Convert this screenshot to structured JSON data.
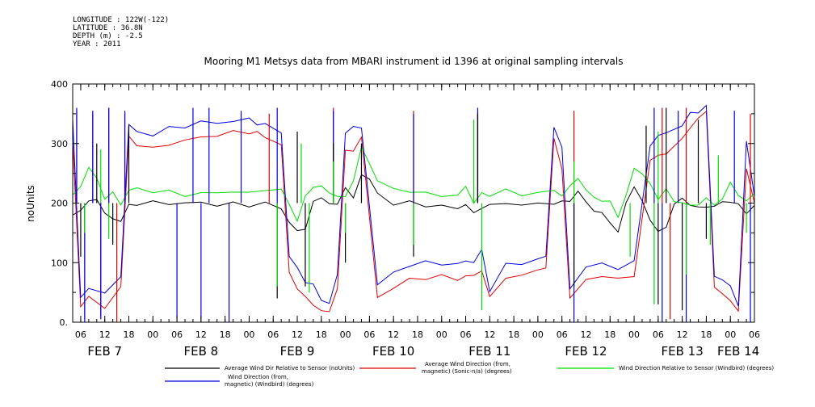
{
  "meta": {
    "longitude": "LONGITUDE : 122W(-122)",
    "latitude": "LATITUDE : 36.8N",
    "depth": "DEPTH (m) : -2.5",
    "year": "YEAR : 2011"
  },
  "chart_data": {
    "type": "line",
    "title": "Mooring M1 Metsys data from MBARI instrument id 1396 at original sampling intervals",
    "ylabel": "noUnits",
    "xlabel": "",
    "ylim": [
      0,
      400
    ],
    "yticks": [
      0,
      100,
      200,
      300,
      400
    ],
    "ytick_labels": [
      "0.",
      "100",
      "200",
      "300",
      "400"
    ],
    "xlim_hours": [
      4,
      174
    ],
    "hour_tick_labels": [
      "06",
      "12",
      "18",
      "00",
      "06",
      "12",
      "18",
      "00",
      "06",
      "12",
      "18",
      "00",
      "06",
      "12",
      "18",
      "00",
      "06",
      "12",
      "18",
      "00",
      "06",
      "12",
      "18",
      "00",
      "06",
      "12",
      "18",
      "00",
      "06"
    ],
    "day_labels": [
      {
        "label": "FEB  7",
        "hour": 12
      },
      {
        "label": "FEB  8",
        "hour": 36
      },
      {
        "label": "FEB  9",
        "hour": 60
      },
      {
        "label": "FEB 10",
        "hour": 84
      },
      {
        "label": "FEB 11",
        "hour": 108
      },
      {
        "label": "FEB 12",
        "hour": 132
      },
      {
        "label": "FEB 13",
        "hour": 156
      },
      {
        "label": "FEB 14",
        "hour": 170
      }
    ],
    "grid": false,
    "legend_position": "bottom",
    "series": [
      {
        "name": "Average Wind Dir Relative to Sensor (noUnits)",
        "color": "#000000",
        "x": [
          4,
          6,
          8,
          10,
          12,
          14,
          16,
          18,
          20,
          24,
          28,
          32,
          36,
          40,
          44,
          48,
          52,
          56,
          58,
          60,
          62,
          64,
          66,
          68,
          70,
          72,
          74,
          76,
          78,
          80,
          84,
          88,
          92,
          96,
          100,
          102,
          104,
          106,
          108,
          112,
          116,
          120,
          124,
          126,
          128,
          130,
          132,
          134,
          136,
          138,
          140,
          142,
          144,
          146,
          148,
          150,
          152,
          154,
          156,
          158,
          160,
          162,
          164,
          166,
          168,
          170,
          172,
          174
        ],
        "y": [
          180,
          190,
          200,
          210,
          180,
          175,
          170,
          195,
          200,
          200,
          200,
          200,
          200,
          198,
          198,
          197,
          200,
          190,
          170,
          150,
          160,
          200,
          210,
          200,
          195,
          230,
          205,
          250,
          240,
          215,
          200,
          200,
          197,
          195,
          190,
          200,
          180,
          195,
          195,
          200,
          198,
          197,
          202,
          200,
          205,
          220,
          200,
          190,
          180,
          170,
          150,
          200,
          230,
          200,
          175,
          150,
          160,
          200,
          205,
          200,
          190,
          195,
          195,
          200,
          205,
          195,
          185,
          195
        ]
      },
      {
        "name": "Average Wind Direction (from, magnetic) (Sonic-n/a) (degrees)",
        "color": "#e00000",
        "x": [
          4,
          6,
          8,
          12,
          16,
          18,
          20,
          24,
          28,
          32,
          36,
          40,
          44,
          48,
          50,
          52,
          56,
          58,
          60,
          62,
          64,
          66,
          68,
          70,
          72,
          74,
          76,
          80,
          84,
          88,
          92,
          96,
          100,
          102,
          104,
          106,
          108,
          112,
          116,
          120,
          122,
          124,
          126,
          128,
          132,
          136,
          140,
          144,
          148,
          150,
          152,
          156,
          158,
          160,
          162,
          164,
          166,
          168,
          170,
          172,
          174
        ],
        "y": [
          300,
          30,
          40,
          25,
          60,
          310,
          300,
          290,
          300,
          305,
          310,
          315,
          318,
          320,
          318,
          310,
          300,
          80,
          60,
          40,
          30,
          20,
          15,
          60,
          285,
          290,
          310,
          40,
          60,
          70,
          75,
          78,
          70,
          80,
          75,
          90,
          40,
          75,
          80,
          85,
          95,
          305,
          260,
          40,
          70,
          80,
          70,
          80,
          270,
          280,
          285,
          305,
          330,
          340,
          355,
          60,
          45,
          40,
          15,
          260,
          200
        ]
      },
      {
        "name": "Wind Direction Relative to Sensor (Windbird) (degrees)",
        "color": "#00dd00",
        "x": [
          4,
          6,
          8,
          10,
          12,
          14,
          16,
          18,
          20,
          24,
          28,
          32,
          36,
          40,
          44,
          48,
          52,
          56,
          58,
          60,
          62,
          64,
          66,
          68,
          70,
          72,
          74,
          76,
          78,
          80,
          84,
          88,
          92,
          96,
          100,
          102,
          104,
          106,
          108,
          112,
          116,
          120,
          124,
          126,
          128,
          130,
          132,
          134,
          136,
          138,
          140,
          142,
          144,
          146,
          148,
          150,
          152,
          154,
          156,
          158,
          160,
          162,
          164,
          166,
          168,
          170,
          172,
          174
        ],
        "y": [
          210,
          230,
          260,
          240,
          210,
          215,
          200,
          220,
          225,
          220,
          218,
          215,
          215,
          218,
          220,
          215,
          225,
          220,
          200,
          170,
          210,
          230,
          225,
          220,
          210,
          210,
          240,
          290,
          270,
          235,
          225,
          220,
          215,
          215,
          210,
          230,
          200,
          215,
          215,
          220,
          215,
          217,
          220,
          215,
          225,
          245,
          220,
          210,
          205,
          200,
          180,
          210,
          260,
          250,
          230,
          210,
          220,
          205,
          200,
          195,
          200,
          205,
          200,
          205,
          235,
          215,
          200,
          220
        ]
      },
      {
        "name": "Wind Direction (from, magnetic) (Windbird) (degrees)",
        "color": "#0000e0",
        "x": [
          4,
          6,
          8,
          12,
          16,
          18,
          20,
          24,
          28,
          32,
          36,
          40,
          44,
          48,
          50,
          52,
          56,
          58,
          60,
          62,
          64,
          66,
          68,
          70,
          72,
          74,
          76,
          80,
          84,
          88,
          92,
          96,
          100,
          102,
          104,
          106,
          108,
          112,
          116,
          120,
          122,
          124,
          126,
          128,
          132,
          136,
          140,
          144,
          148,
          150,
          152,
          156,
          158,
          160,
          162,
          164,
          166,
          168,
          170,
          172,
          174
        ],
        "y": [
          340,
          40,
          60,
          45,
          80,
          330,
          320,
          315,
          325,
          330,
          335,
          335,
          338,
          340,
          335,
          330,
          320,
          110,
          90,
          70,
          60,
          40,
          30,
          80,
          320,
          325,
          330,
          60,
          85,
          95,
          100,
          100,
          95,
          105,
          100,
          120,
          55,
          95,
          100,
          105,
          110,
          330,
          290,
          60,
          90,
          100,
          90,
          100,
          300,
          310,
          320,
          330,
          350,
          355,
          360,
          80,
          70,
          60,
          30,
          300,
          215
        ]
      }
    ],
    "spikes": [
      {
        "series": 1,
        "x": [
          5,
          7,
          9,
          11,
          13,
          15,
          17,
          53,
          69,
          89,
          105,
          129,
          151,
          153,
          157,
          173
        ],
        "y": [
          355,
          5,
          350,
          10,
          360,
          0,
          350,
          350,
          360,
          355,
          350,
          355,
          360,
          5,
          360,
          350
        ]
      },
      {
        "series": 3,
        "x": [
          5,
          7,
          9,
          11,
          13,
          17,
          30,
          34,
          36,
          38,
          43,
          46,
          55,
          69,
          89,
          105,
          129,
          149,
          151,
          155,
          157,
          169,
          173
        ],
        "y": [
          360,
          0,
          355,
          5,
          360,
          355,
          5,
          360,
          5,
          360,
          0,
          355,
          360,
          355,
          350,
          360,
          0,
          360,
          0,
          355,
          0,
          355,
          0
        ]
      },
      {
        "series": 0,
        "x": [
          6,
          10,
          14,
          18,
          55,
          60,
          62,
          69,
          72,
          76,
          89,
          105,
          129,
          147,
          150,
          152,
          156,
          160,
          162
        ],
        "y": [
          110,
          300,
          130,
          330,
          40,
          320,
          60,
          300,
          100,
          300,
          110,
          350,
          60,
          330,
          30,
          360,
          20,
          340,
          140
        ]
      },
      {
        "series": 2,
        "x": [
          7,
          11,
          13,
          55,
          61,
          63,
          69,
          72,
          89,
          104,
          106,
          129,
          143,
          149,
          150,
          157,
          163,
          165,
          172
        ],
        "y": [
          150,
          290,
          140,
          60,
          300,
          50,
          270,
          150,
          130,
          340,
          20,
          270,
          110,
          30,
          320,
          80,
          130,
          280,
          150
        ]
      }
    ]
  }
}
